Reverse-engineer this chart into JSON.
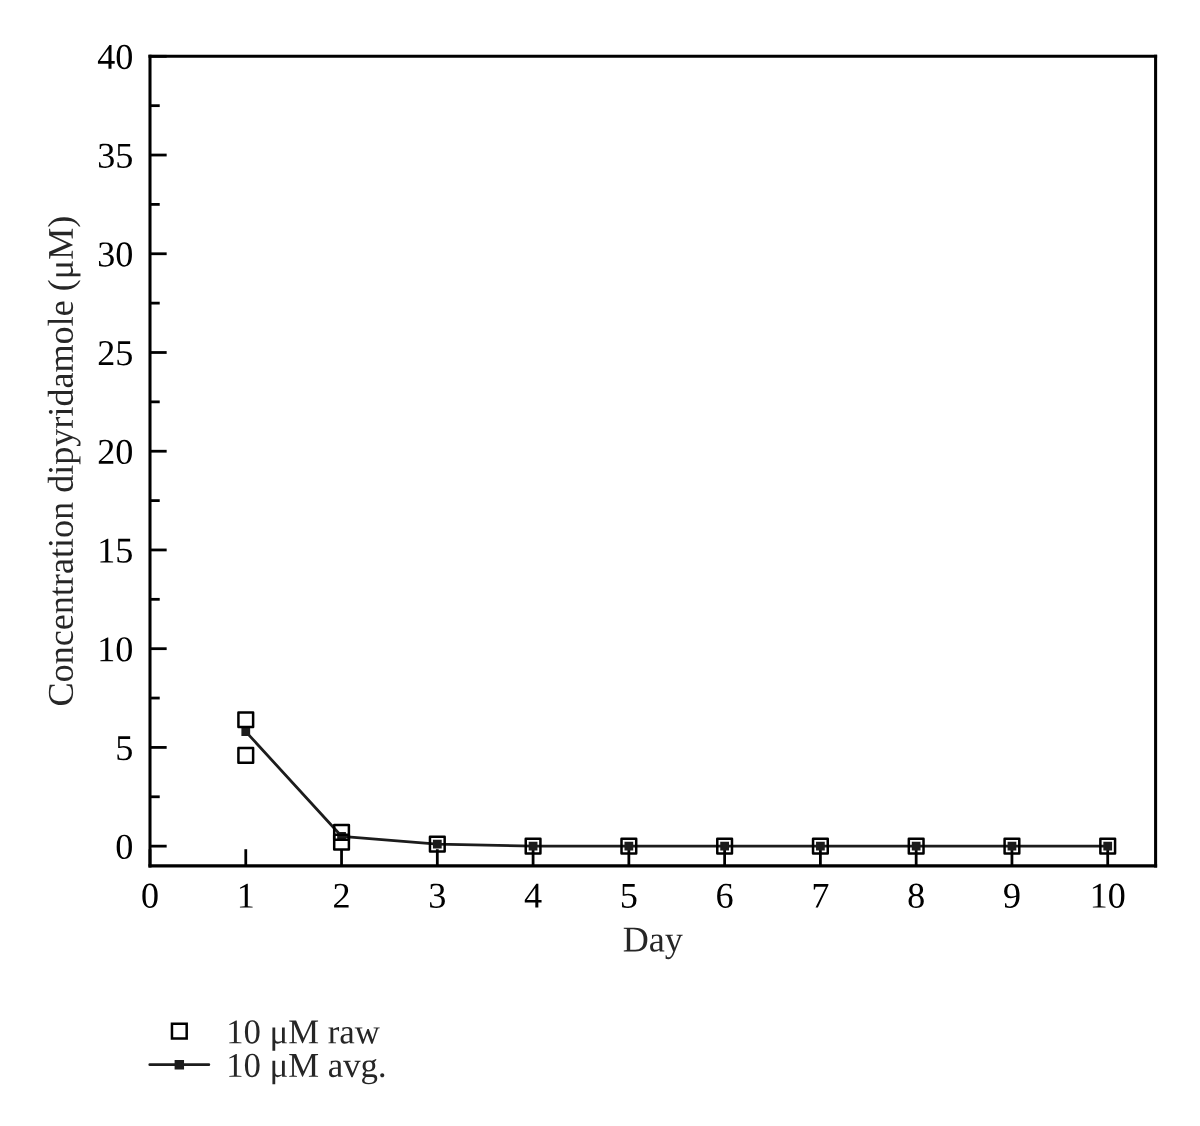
{
  "chart_data": {
    "type": "scatter",
    "xlabel": "Day",
    "ylabel": "Concentration dipyridamole (μM)",
    "xlim": [
      0,
      10.5
    ],
    "xticks": [
      0,
      1,
      2,
      3,
      4,
      5,
      6,
      7,
      8,
      9,
      10
    ],
    "ylim": [
      -1,
      40
    ],
    "yticks": [
      0,
      {
        "value": 2.5,
        "label": null
      },
      5,
      {
        "value": 7.5,
        "label": null
      },
      10,
      {
        "value": 12.5,
        "label": null
      },
      15,
      {
        "value": 17.5,
        "label": null
      },
      20,
      {
        "value": 22.5,
        "label": null
      },
      25,
      {
        "value": 27.5,
        "label": null
      },
      30,
      {
        "value": 32.5,
        "label": null
      },
      35,
      {
        "value": 37.5,
        "label": null
      },
      40
    ],
    "legend": "bottom left",
    "series": [
      {
        "name": "10 μM raw",
        "marker": "square",
        "color": "#000000",
        "x": [
          1,
          1,
          2,
          2,
          3,
          4,
          5,
          6,
          7,
          8,
          9,
          10
        ],
        "values": [
          6.4,
          4.6,
          0.7,
          0.2,
          0.1,
          0,
          0,
          0,
          0,
          0,
          0,
          0
        ]
      },
      {
        "name": "10 μM avg.",
        "type": "line",
        "marker": "square",
        "line_style": "solid",
        "color": "#1c1c1c",
        "x": [
          1,
          2,
          3,
          4,
          5,
          6,
          7,
          8,
          9,
          10
        ],
        "values": [
          5.8,
          0.5,
          0.1,
          0,
          0,
          0,
          0,
          0,
          0,
          0
        ]
      }
    ]
  }
}
